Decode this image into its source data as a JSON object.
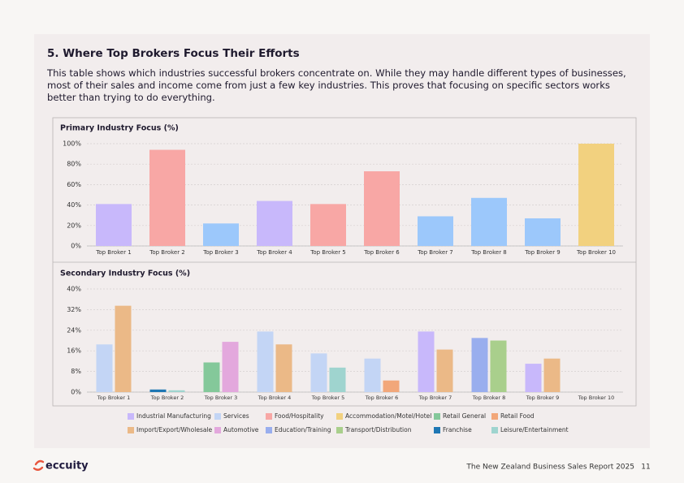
{
  "header": {
    "title": "5.  Where Top Brokers Focus Their Efforts",
    "description": "This table shows which industries successful brokers concentrate on. While they may handle different types of businesses, most of their sales and income come from just a few key industries. This proves that focusing on specific sectors works better than trying to do everything."
  },
  "chart_data": [
    {
      "type": "bar",
      "title": "Primary Industry Focus (%)",
      "categories": [
        "Top Broker 1",
        "Top Broker 2",
        "Top Broker 3",
        "Top Broker 4",
        "Top Broker 5",
        "Top Broker 6",
        "Top Broker 7",
        "Top Broker 8",
        "Top Broker 9",
        "Top Broker 10"
      ],
      "values": [
        41,
        94,
        22,
        44,
        41,
        73,
        29,
        47,
        27,
        100
      ],
      "colors": [
        "#c8b8fb",
        "#f8a7a5",
        "#9cc8fb",
        "#c8b8fb",
        "#f8a7a5",
        "#f8a7a5",
        "#9cc8fb",
        "#9cc8fb",
        "#9cc8fb",
        "#f2d17f"
      ],
      "ylim": [
        0,
        100
      ],
      "yticks": [
        {
          "value": 0,
          "label": "0%"
        },
        {
          "value": 20,
          "label": "20%"
        },
        {
          "value": 40,
          "label": "40%"
        },
        {
          "value": 60,
          "label": "60%"
        },
        {
          "value": 80,
          "label": "80%"
        },
        {
          "value": 100,
          "label": "100%"
        }
      ],
      "grid": true
    },
    {
      "type": "grouped_bar",
      "title": "Secondary Industry Focus (%)",
      "categories": [
        "Top Broker 1",
        "Top Broker 2",
        "Top Broker 3",
        "Top Broker 4",
        "Top Broker 5",
        "Top Broker 6",
        "Top Broker 7",
        "Top Broker 8",
        "Top Broker 9",
        "Top Broker 10"
      ],
      "series": [
        {
          "name": "Industrial Manufacturing",
          "color": "#c8b8fb",
          "values": [
            null,
            null,
            null,
            null,
            null,
            null,
            23.5,
            null,
            11,
            null
          ]
        },
        {
          "name": "Services",
          "color": "#c3d5f5",
          "values": [
            18.5,
            null,
            null,
            23.5,
            15,
            13,
            null,
            null,
            null,
            null
          ]
        },
        {
          "name": "Food/Hospitality",
          "color": "#f8a7a5",
          "values": [
            null,
            null,
            null,
            null,
            null,
            null,
            null,
            null,
            null,
            null
          ]
        },
        {
          "name": "Accommodation/Motel/Hotel",
          "color": "#f2d17f",
          "values": [
            null,
            null,
            null,
            null,
            null,
            null,
            null,
            null,
            null,
            null
          ]
        },
        {
          "name": "Retail General",
          "color": "#84c89a",
          "values": [
            null,
            null,
            11.5,
            null,
            null,
            null,
            null,
            null,
            null,
            null
          ]
        },
        {
          "name": "Retail Food",
          "color": "#f2a77a",
          "values": [
            null,
            null,
            null,
            null,
            null,
            4.5,
            null,
            null,
            null,
            null
          ]
        },
        {
          "name": "Import/Export/Wholesale",
          "color": "#ebb987",
          "values": [
            33.5,
            null,
            null,
            18.5,
            null,
            null,
            16.5,
            null,
            13,
            null
          ]
        },
        {
          "name": "Automotive",
          "color": "#e3a8dd",
          "values": [
            null,
            null,
            19.5,
            null,
            null,
            null,
            null,
            null,
            null,
            null
          ]
        },
        {
          "name": "Education/Training",
          "color": "#99aeee",
          "values": [
            null,
            null,
            null,
            null,
            null,
            null,
            null,
            21,
            null,
            null
          ]
        },
        {
          "name": "Transport/Distribution",
          "color": "#a9cf8c",
          "values": [
            null,
            null,
            null,
            null,
            null,
            null,
            null,
            20,
            null,
            null
          ]
        },
        {
          "name": "Franchise",
          "color": "#1f77b4",
          "values": [
            null,
            1,
            null,
            null,
            null,
            null,
            null,
            null,
            null,
            null
          ]
        },
        {
          "name": "Leisure/Entertainment",
          "color": "#9fd4cf",
          "values": [
            null,
            0.7,
            null,
            null,
            9.5,
            null,
            null,
            null,
            null,
            null
          ]
        }
      ],
      "ylim": [
        0,
        40
      ],
      "yticks": [
        {
          "value": 0,
          "label": "0%"
        },
        {
          "value": 8,
          "label": "8%"
        },
        {
          "value": 16,
          "label": "16%"
        },
        {
          "value": 24,
          "label": "24%"
        },
        {
          "value": 32,
          "label": "32%"
        },
        {
          "value": 40,
          "label": "40%"
        }
      ],
      "grid": true
    }
  ],
  "footer": {
    "logo": "eccuity",
    "report": "The New Zealand Business Sales  Report 2025",
    "page": "11"
  }
}
